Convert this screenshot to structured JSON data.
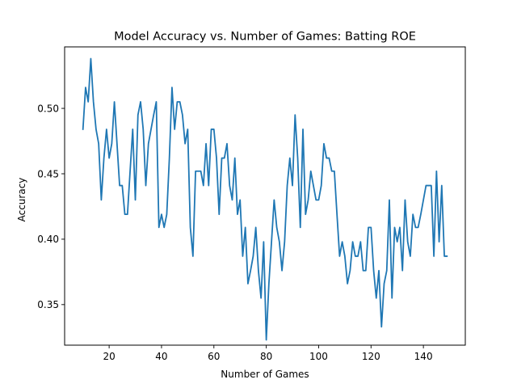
{
  "chart_data": {
    "type": "line",
    "title": "Model Accuracy vs. Number of Games: Batting ROE",
    "xlabel": "Number of Games",
    "ylabel": "Accuracy",
    "xlim": [
      3,
      156
    ],
    "ylim": [
      0.319,
      0.547
    ],
    "xticks": [
      20,
      40,
      60,
      80,
      100,
      120,
      140
    ],
    "yticks": [
      0.35,
      0.4,
      0.45,
      0.5
    ],
    "ytick_labels": [
      "0.35",
      "0.40",
      "0.45",
      "0.50"
    ],
    "grid": false,
    "line_color": "#1f77b4",
    "series": [
      {
        "x": [
          10,
          11,
          12,
          13,
          14,
          15,
          16,
          17,
          18,
          19,
          20,
          21,
          22,
          23,
          24,
          25,
          26,
          27,
          28,
          29,
          30,
          31,
          32,
          33,
          34,
          35,
          36,
          37,
          38,
          39,
          40,
          41,
          42,
          43,
          44,
          45,
          46,
          47,
          48,
          49,
          50,
          51,
          52,
          53,
          54,
          55,
          56,
          57,
          58,
          59,
          60,
          61,
          62,
          63,
          64,
          65,
          66,
          67,
          68,
          69,
          70,
          71,
          72,
          73,
          74,
          75,
          76,
          77,
          78,
          79,
          80,
          81,
          82,
          83,
          84,
          85,
          86,
          87,
          88,
          89,
          90,
          91,
          92,
          93,
          94,
          95,
          96,
          97,
          98,
          99,
          100,
          101,
          102,
          103,
          104,
          105,
          106,
          107,
          108,
          109,
          110,
          111,
          112,
          113,
          114,
          115,
          116,
          117,
          118,
          119,
          120,
          121,
          122,
          123,
          124,
          125,
          126,
          127,
          128,
          129,
          130,
          131,
          132,
          133,
          134,
          135,
          136,
          137,
          138,
          139,
          140,
          141,
          142,
          143,
          144,
          145,
          146,
          147,
          148,
          149
        ],
        "values": [
          0.484,
          0.516,
          0.505,
          0.538,
          0.505,
          0.484,
          0.473,
          0.43,
          0.462,
          0.484,
          0.462,
          0.473,
          0.505,
          0.473,
          0.441,
          0.441,
          0.419,
          0.419,
          0.452,
          0.484,
          0.43,
          0.495,
          0.505,
          0.484,
          0.441,
          0.473,
          0.484,
          0.495,
          0.505,
          0.409,
          0.419,
          0.409,
          0.419,
          0.462,
          0.516,
          0.484,
          0.505,
          0.505,
          0.495,
          0.473,
          0.484,
          0.409,
          0.387,
          0.452,
          0.452,
          0.452,
          0.441,
          0.473,
          0.441,
          0.484,
          0.484,
          0.462,
          0.419,
          0.462,
          0.462,
          0.473,
          0.441,
          0.43,
          0.462,
          0.419,
          0.43,
          0.387,
          0.409,
          0.366,
          0.376,
          0.387,
          0.409,
          0.376,
          0.355,
          0.398,
          0.323,
          0.366,
          0.398,
          0.43,
          0.409,
          0.398,
          0.376,
          0.398,
          0.441,
          0.462,
          0.441,
          0.495,
          0.462,
          0.409,
          0.484,
          0.419,
          0.43,
          0.452,
          0.441,
          0.43,
          0.43,
          0.441,
          0.473,
          0.462,
          0.462,
          0.452,
          0.452,
          0.419,
          0.387,
          0.398,
          0.387,
          0.366,
          0.376,
          0.398,
          0.387,
          0.387,
          0.398,
          0.376,
          0.376,
          0.409,
          0.409,
          0.376,
          0.355,
          0.376,
          0.333,
          0.366,
          0.376,
          0.43,
          0.355,
          0.409,
          0.398,
          0.409,
          0.376,
          0.43,
          0.398,
          0.387,
          0.419,
          0.409,
          0.409,
          0.419,
          0.43,
          0.441,
          0.441,
          0.441,
          0.387,
          0.452,
          0.398,
          0.441,
          0.387,
          0.387
        ]
      }
    ]
  }
}
